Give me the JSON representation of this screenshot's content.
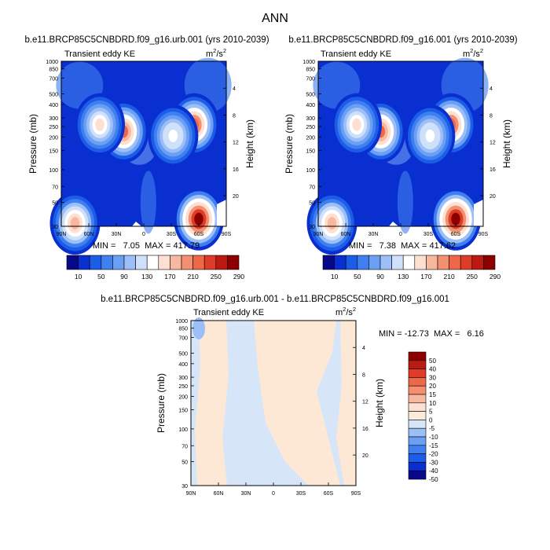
{
  "page_title": "ANN",
  "chart_data": [
    {
      "type": "heatmap",
      "title": "b.e11.BRCP85C5CNBDRD.f09_g16.urb.001 (yrs 2010-2039)",
      "subtitle_left": "Transient eddy KE",
      "units_base": "m",
      "units_exp1": "2",
      "units_mid": "/s",
      "units_exp2": "2",
      "xlabel": "",
      "ylabel": "Pressure (mb)",
      "ylabel_right": "Height (km)",
      "x_ticks": [
        "90N",
        "60N",
        "30N",
        "0",
        "30S",
        "60S",
        "90S"
      ],
      "y_ticks": [
        "30",
        "50",
        "70",
        "100",
        "150",
        "200",
        "250",
        "300",
        "400",
        "500",
        "700",
        "850",
        "1000"
      ],
      "y_ticks_right": [
        "20",
        "16",
        "12",
        "8",
        "4"
      ],
      "stats_text": "MIN =   7.05  MAX = 417.79",
      "min": 7.05,
      "max": 417.79,
      "colorbar_labels": [
        "10",
        "50",
        "90",
        "130",
        "170",
        "210",
        "250",
        "290"
      ],
      "features": [
        {
          "lat": 22,
          "p": 225,
          "value": 320
        },
        {
          "lat": 48,
          "p": 260,
          "value": 240
        },
        {
          "lat": -55,
          "p": 260,
          "value": 330
        },
        {
          "lat": -32,
          "p": 205,
          "value": 220
        },
        {
          "lat": -60,
          "p": 35,
          "value": 420
        },
        {
          "lat": 75,
          "p": 32,
          "value": 280
        }
      ]
    },
    {
      "type": "heatmap",
      "title": "b.e11.BRCP85C5CNBDRD.f09_g16.001 (yrs 2010-2039)",
      "subtitle_left": "Transient eddy KE",
      "units_base": "m",
      "units_exp1": "2",
      "units_mid": "/s",
      "units_exp2": "2",
      "xlabel": "",
      "ylabel": "Pressure (mb)",
      "ylabel_right": "Height (km)",
      "x_ticks": [
        "90N",
        "60N",
        "30N",
        "0",
        "30S",
        "60S",
        "90S"
      ],
      "y_ticks": [
        "30",
        "50",
        "70",
        "100",
        "150",
        "200",
        "250",
        "300",
        "400",
        "500",
        "700",
        "850",
        "1000"
      ],
      "y_ticks_right": [
        "20",
        "16",
        "12",
        "8",
        "4"
      ],
      "stats_text": "MIN =   7.38  MAX = 417.62",
      "min": 7.38,
      "max": 417.62,
      "colorbar_labels": [
        "10",
        "50",
        "90",
        "130",
        "170",
        "210",
        "250",
        "290"
      ],
      "features": [
        {
          "lat": 22,
          "p": 225,
          "value": 320
        },
        {
          "lat": 48,
          "p": 260,
          "value": 240
        },
        {
          "lat": -55,
          "p": 260,
          "value": 330
        },
        {
          "lat": -32,
          "p": 205,
          "value": 220
        },
        {
          "lat": -60,
          "p": 35,
          "value": 420
        },
        {
          "lat": 75,
          "p": 32,
          "value": 280
        }
      ]
    },
    {
      "type": "heatmap",
      "title": "b.e11.BRCP85C5CNBDRD.f09_g16.urb.001 - b.e11.BRCP85C5CNBDRD.f09_g16.001",
      "subtitle_left": "Transient eddy KE",
      "units_base": "m",
      "units_exp1": "2",
      "units_mid": "/s",
      "units_exp2": "2",
      "xlabel": "",
      "ylabel": "Pressure (mb)",
      "ylabel_right": "Height (km)",
      "x_ticks": [
        "90N",
        "60N",
        "30N",
        "0",
        "30S",
        "60S",
        "90S"
      ],
      "y_ticks": [
        "30",
        "50",
        "70",
        "100",
        "150",
        "200",
        "250",
        "300",
        "400",
        "500",
        "700",
        "850",
        "1000"
      ],
      "y_ticks_right": [
        "20",
        "16",
        "12",
        "8",
        "4"
      ],
      "stats_text": "MIN = -12.73  MAX =   6.16",
      "min": -12.73,
      "max": 6.16,
      "colorbar_labels": [
        "50",
        "40",
        "30",
        "20",
        "15",
        "10",
        "5",
        "0",
        "-5",
        "-10",
        "-15",
        "-20",
        "-30",
        "-40",
        "-50"
      ]
    }
  ],
  "colors": {
    "kepalette": [
      "#08088a",
      "#0a2fd0",
      "#1c5de8",
      "#3f7ff0",
      "#6a9ff4",
      "#9dbff8",
      "#cfe0fb",
      "#ffffff",
      "#fde0d2",
      "#f8b8a0",
      "#f49070",
      "#ee6848",
      "#dc3c28",
      "#bc1a10",
      "#8c0000"
    ],
    "diffpalette": [
      "#8c0000",
      "#bc1a10",
      "#dc3c28",
      "#ee6848",
      "#f49070",
      "#f8b8a0",
      "#fde0d2",
      "#fdebd9",
      "#d6e6f8",
      "#9dbff8",
      "#6a9ff4",
      "#3f7ff0",
      "#1c5de8",
      "#0a2fd0",
      "#08088a"
    ],
    "diff_positive": "#fde8d6",
    "diff_negative": "#d6e6f8"
  }
}
